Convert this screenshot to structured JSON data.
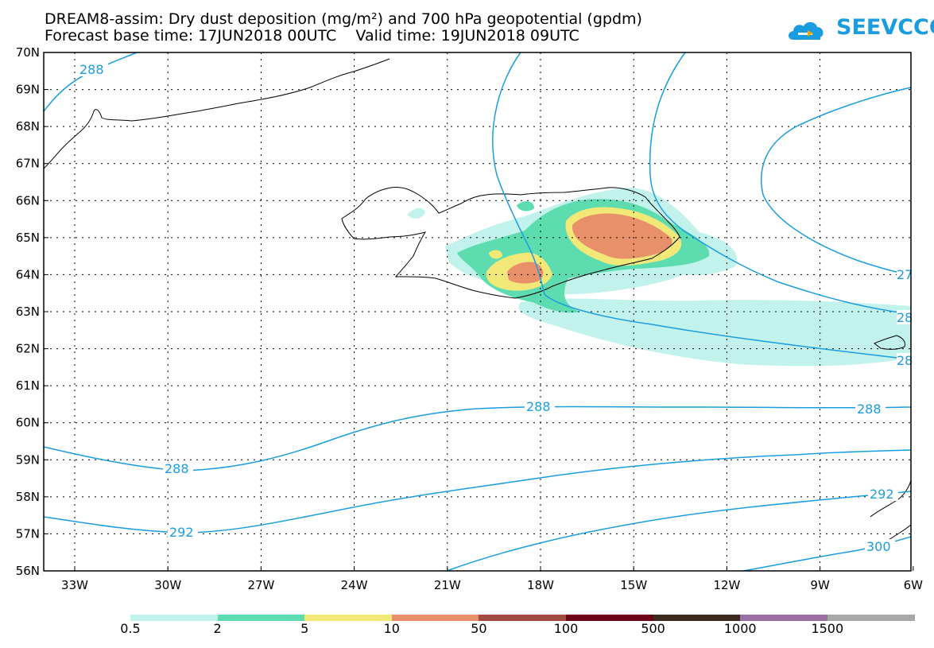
{
  "title": {
    "line1": "DREAM8-assim: Dry dust deposition (mg/m²) and 700 hPa geopotential (gpdm)",
    "line2": "Forecast base time: 17JUN2018 00UTC    Valid time: 19JUN2018 09UTC"
  },
  "logo": {
    "text": "SEEVCCC"
  },
  "map": {
    "lat_labels": [
      "70N",
      "69N",
      "68N",
      "67N",
      "66N",
      "65N",
      "64N",
      "63N",
      "62N",
      "61N",
      "60N",
      "59N",
      "58N",
      "57N",
      "56N"
    ],
    "lon_labels": [
      "33W",
      "30W",
      "27W",
      "24W",
      "21W",
      "18W",
      "15W",
      "12W",
      "9W",
      "6W"
    ],
    "contour_labels": [
      "288",
      "288",
      "288",
      "288",
      "292",
      "292",
      "300",
      "27",
      "28",
      "28"
    ]
  },
  "legend": {
    "colors": [
      "#c2f2ec",
      "#5ddcb0",
      "#f2e878",
      "#e8906a",
      "#a44a44",
      "#6e0018",
      "#3a2a20",
      "#9a70a4",
      "#a8a8a8"
    ],
    "labels": [
      "0.5",
      "2",
      "5",
      "10",
      "50",
      "100",
      "500",
      "1000",
      "1500"
    ]
  }
}
